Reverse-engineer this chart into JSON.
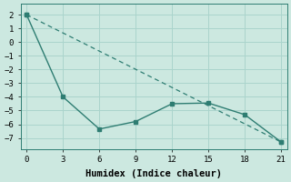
{
  "line1_x": [
    0,
    3,
    6,
    9,
    12,
    15,
    18,
    21
  ],
  "line1_y": [
    2,
    -4.0,
    -6.35,
    -5.8,
    -4.5,
    -4.45,
    -5.3,
    -7.3
  ],
  "line2_x": [
    0,
    21
  ],
  "line2_y": [
    2,
    -7.3
  ],
  "line_color": "#2e7d72",
  "background_color": "#cce8e0",
  "grid_color": "#aad4cc",
  "xlabel": "Humidex (Indice chaleur)",
  "xlim": [
    -0.5,
    21.5
  ],
  "ylim": [
    -7.8,
    2.8
  ],
  "xticks": [
    0,
    3,
    6,
    9,
    12,
    15,
    18,
    21
  ],
  "yticks": [
    -7,
    -6,
    -5,
    -4,
    -3,
    -2,
    -1,
    0,
    1,
    2
  ],
  "font_family": "monospace",
  "xlabel_fontsize": 7.5,
  "tick_fontsize": 6.5
}
